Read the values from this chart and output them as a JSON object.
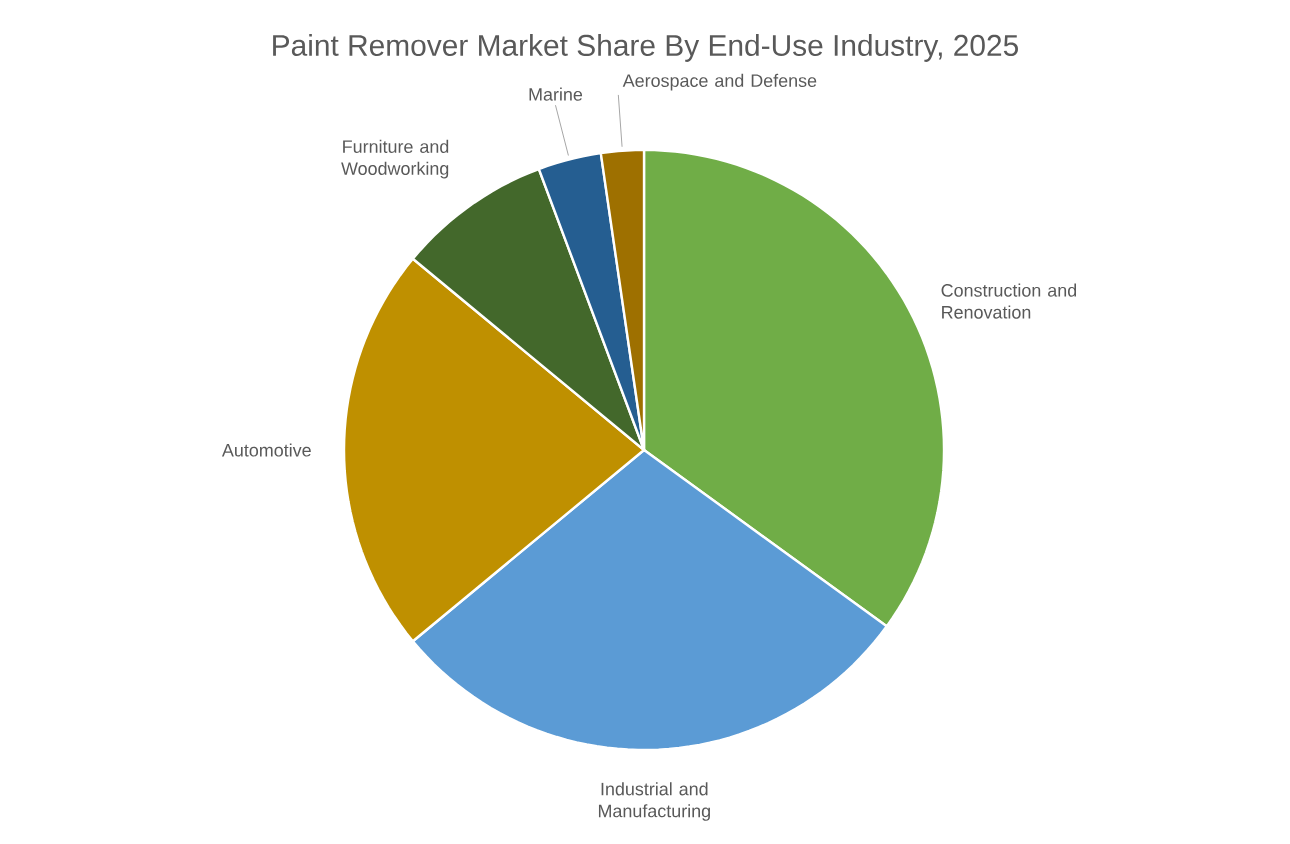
{
  "chart_data": {
    "type": "pie",
    "title": "Paint Remover Market Share By End-Use Industry, 2025",
    "categories": [
      "Construction and Renovation",
      "Industrial and Manufacturing",
      "Automotive",
      "Furniture and Woodworking",
      "Marine",
      "Aerospace and Defense"
    ],
    "values": [
      35,
      29,
      22,
      8.3,
      3.4,
      2.3
    ],
    "colors": [
      "#70ad47",
      "#5b9bd5",
      "#bf9000",
      "#43682b",
      "#255e91",
      "#9e7000"
    ]
  }
}
